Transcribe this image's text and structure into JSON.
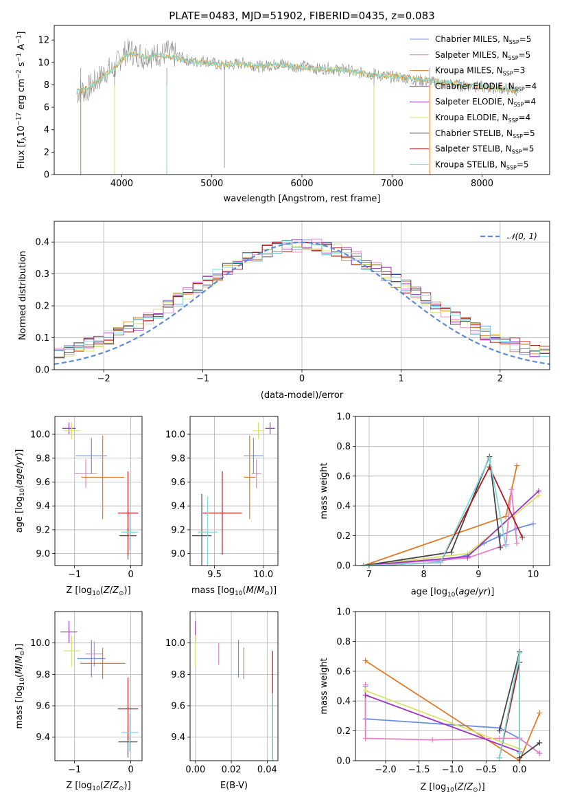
{
  "page_title": "PLATE=0483, MJD=51902, FIBERID=0435, z=0.083",
  "series_colors": {
    "chabrier_miles": "#6c8fe0",
    "salpeter_miles": "#e87fc4",
    "kroupa_miles": "#e07a2a",
    "chabrier_elodie": "#9b36c4",
    "salpeter_elodie": "#9b36c4",
    "kroupa_elodie": "#d9e36a",
    "chabrier_stelib": "#444444",
    "salpeter_stelib": "#b01919",
    "kroupa_stelib": "#7fd9dc",
    "data": "#888888"
  },
  "legend_labels": [
    "Chabrier MILES, N",
    "Salpeter MILES, N",
    "Kroupa MILES, N",
    "Chabrier ELODIE, N",
    "Salpeter ELODIE, N",
    "Kroupa ELODIE, N",
    "Chabrier STELIB, N",
    "Salpeter STELIB, N",
    "Kroupa STELIB, N"
  ],
  "legend_counts": [
    "5",
    "5",
    "3",
    "4",
    "4",
    "4",
    "5",
    "5",
    "5"
  ],
  "legend_subscript": "SSP",
  "gauss_label": "𝒩(0, 1)",
  "chart_data": [
    {
      "type": "line",
      "title": "PLATE=0483, MJD=51902, FIBERID=0435, z=0.083",
      "xlabel": "wavelength [Angstrom, rest frame]",
      "ylabel": "Flux [f_λ10^-17 erg cm^-2 s^-1 A^-1]",
      "xlim": [
        3250,
        8750
      ],
      "ylim": [
        0,
        13.3
      ],
      "xticks": [
        4000,
        5000,
        6000,
        7000,
        8000
      ],
      "yticks": [
        0,
        2,
        4,
        6,
        8,
        10,
        12
      ],
      "data_spectrum": {
        "x": [
          3500,
          3550,
          3600,
          3650,
          3700,
          3750,
          3800,
          3850,
          3900,
          3950,
          4000,
          4050,
          4100,
          4150,
          4200,
          4250,
          4300,
          4350,
          4400,
          4450,
          4500,
          4600,
          4700,
          4800,
          4900,
          5000,
          5100,
          5200,
          5300,
          5400,
          5500,
          5600,
          5700,
          5800,
          5900,
          6000,
          6100,
          6200,
          6300,
          6400,
          6500,
          6600,
          6700,
          6800,
          6900,
          7000,
          7100,
          7200,
          7300,
          7400,
          7500,
          7600,
          7700,
          7800,
          7900,
          8000,
          8100,
          8200,
          8300,
          8400
        ],
        "y": [
          7.2,
          7.6,
          7.4,
          7.9,
          8.2,
          8.6,
          9.0,
          9.4,
          9.2,
          9.9,
          10.6,
          10.9,
          11.1,
          10.6,
          10.8,
          10.4,
          10.9,
          10.5,
          10.8,
          10.7,
          10.9,
          10.6,
          10.3,
          10.0,
          10.2,
          10.0,
          9.7,
          9.8,
          9.9,
          10.0,
          9.6,
          9.7,
          9.8,
          9.9,
          9.6,
          9.7,
          9.5,
          9.4,
          9.5,
          9.3,
          9.4,
          9.0,
          9.1,
          8.9,
          8.8,
          8.7,
          8.7,
          8.5,
          8.4,
          8.3,
          8.2,
          8.1,
          8.0,
          7.9,
          7.9,
          7.8,
          7.7,
          7.7,
          7.6,
          7.5
        ]
      },
      "model_spectrum": {
        "x": [
          3500,
          3600,
          3700,
          3800,
          3900,
          4000,
          4100,
          4200,
          4300,
          4400,
          4500,
          4700,
          4900,
          5100,
          5300,
          5500,
          5700,
          5900,
          6100,
          6300,
          6500,
          6700,
          6900,
          7100,
          7300,
          7500,
          7700,
          7900,
          8100,
          8300,
          8400
        ],
        "y": [
          7.4,
          7.6,
          8.1,
          8.8,
          9.3,
          10.3,
          10.8,
          10.6,
          10.5,
          10.6,
          10.6,
          10.2,
          10.0,
          9.8,
          9.9,
          9.7,
          9.8,
          9.6,
          9.5,
          9.4,
          9.3,
          9.0,
          8.8,
          8.7,
          8.5,
          8.3,
          8.1,
          7.9,
          7.8,
          7.6,
          7.5
        ]
      }
    },
    {
      "type": "line",
      "xlabel": "(data-model)/error",
      "ylabel": "Normed distribution",
      "xlim": [
        -2.5,
        2.5
      ],
      "ylim": [
        0,
        0.465
      ],
      "xticks": [
        -2,
        -1,
        0,
        1,
        2
      ],
      "yticks": [
        0.0,
        0.1,
        0.2,
        0.3,
        0.4
      ],
      "series": [
        {
          "name": "𝒩(0, 1)",
          "type": "gaussian",
          "mu": 0,
          "sigma": 1
        }
      ],
      "histogram_note_bins": 50
    },
    {
      "type": "scatter",
      "xlabel": "Z [log10(Z/Z⊙)]",
      "ylabel": "age [log10(age/yr)]",
      "xlim": [
        -1.35,
        0.2
      ],
      "ylim": [
        8.9,
        10.15
      ],
      "xticks": [
        -1,
        0
      ],
      "yticks": [
        9.0,
        9.2,
        9.4,
        9.6,
        9.8,
        10.0
      ],
      "points": [
        {
          "s": "chabrier_miles",
          "x": -0.7,
          "y": 9.82,
          "ex": 0.28,
          "ey": 0.15
        },
        {
          "s": "salpeter_miles",
          "x": -0.8,
          "y": 9.67,
          "ex": 0.2,
          "ey": 0.12
        },
        {
          "s": "kroupa_miles",
          "x": -0.5,
          "y": 9.64,
          "ex": 0.38,
          "ey": 0.35
        },
        {
          "s": "chabrier_elodie",
          "x": -1.1,
          "y": 10.05,
          "ex": 0.12,
          "ey": 0.05
        },
        {
          "s": "kroupa_elodie",
          "x": -1.05,
          "y": 10.03,
          "ex": 0.15,
          "ey": 0.07
        },
        {
          "s": "chabrier_stelib",
          "x": -0.05,
          "y": 9.15,
          "ex": 0.15,
          "ey": 0.2
        },
        {
          "s": "salpeter_stelib",
          "x": -0.05,
          "y": 9.34,
          "ex": 0.18,
          "ey": 0.35
        },
        {
          "s": "kroupa_stelib",
          "x": -0.02,
          "y": 9.18,
          "ex": 0.15,
          "ey": 0.15
        }
      ]
    },
    {
      "type": "scatter",
      "xlabel": "mass [log10(M/M⊙)]",
      "ylabel": "",
      "xlim": [
        9.25,
        10.15
      ],
      "ylim": [
        8.9,
        10.15
      ],
      "xticks": [
        9.5,
        10.0
      ],
      "yticks": [
        9.0,
        9.2,
        9.4,
        9.6,
        9.8,
        10.0
      ],
      "points": [
        {
          "s": "chabrier_miles",
          "x": 9.9,
          "y": 9.82,
          "ex": 0.1,
          "ey": 0.15
        },
        {
          "s": "salpeter_miles",
          "x": 9.93,
          "y": 9.67,
          "ex": 0.05,
          "ey": 0.12
        },
        {
          "s": "kroupa_miles",
          "x": 9.86,
          "y": 9.64,
          "ex": 0.06,
          "ey": 0.35
        },
        {
          "s": "chabrier_elodie",
          "x": 10.07,
          "y": 10.05,
          "ex": 0.05,
          "ey": 0.05
        },
        {
          "s": "kroupa_elodie",
          "x": 9.95,
          "y": 10.03,
          "ex": 0.06,
          "ey": 0.07
        },
        {
          "s": "chabrier_stelib",
          "x": 9.37,
          "y": 9.15,
          "ex": 0.1,
          "ey": 0.35
        },
        {
          "s": "salpeter_stelib",
          "x": 9.58,
          "y": 9.34,
          "ex": 0.2,
          "ey": 0.35
        },
        {
          "s": "kroupa_stelib",
          "x": 9.43,
          "y": 9.18,
          "ex": 0.1,
          "ey": 0.3
        }
      ]
    },
    {
      "type": "line",
      "xlabel": "age [log10(age/yr)]",
      "ylabel": "mass weight",
      "xlim": [
        6.75,
        10.3
      ],
      "ylim": [
        0,
        1.0
      ],
      "xticks": [
        7,
        8,
        9,
        10
      ],
      "yticks": [
        0.0,
        0.2,
        0.4,
        0.6,
        0.8,
        1.0
      ],
      "series": [
        {
          "s": "chabrier_miles",
          "x": [
            6.9,
            7.6,
            8.3,
            8.8,
            9.1,
            9.4,
            9.7,
            10.0
          ],
          "y": [
            0.0,
            0.03,
            0.03,
            0.07,
            0.15,
            0.2,
            0.25,
            0.28
          ]
        },
        {
          "s": "kroupa_miles",
          "x": [
            6.9,
            9.5,
            9.7
          ],
          "y": [
            0.0,
            0.33,
            0.67
          ]
        },
        {
          "s": "salpeter_miles",
          "x": [
            6.9,
            8.8,
            9.5,
            9.6,
            9.7
          ],
          "y": [
            0.0,
            0.05,
            0.14,
            0.51,
            0.15
          ]
        },
        {
          "s": "kroupa_elodie",
          "x": [
            6.9,
            8.8,
            10.1
          ],
          "y": [
            0.0,
            0.08,
            0.47
          ]
        },
        {
          "s": "chabrier_elodie",
          "x": [
            6.9,
            8.8,
            10.1
          ],
          "y": [
            0.0,
            0.06,
            0.5
          ]
        },
        {
          "s": "chabrier_stelib",
          "x": [
            6.9,
            8.5,
            9.2,
            9.4
          ],
          "y": [
            0.0,
            0.09,
            0.73,
            0.12
          ]
        },
        {
          "s": "salpeter_stelib",
          "x": [
            6.9,
            8.3,
            9.2,
            9.8
          ],
          "y": [
            0.0,
            0.02,
            0.66,
            0.19
          ]
        },
        {
          "s": "kroupa_stelib",
          "x": [
            6.9,
            8.3,
            9.2,
            9.5
          ],
          "y": [
            0.0,
            0.02,
            0.72,
            0.13
          ]
        }
      ]
    },
    {
      "type": "scatter",
      "xlabel": "Z [log10(Z/Z⊙)]",
      "ylabel": "mass [log10(M/M⊙)]",
      "xlim": [
        -1.35,
        0.2
      ],
      "ylim": [
        9.25,
        10.2
      ],
      "xticks": [
        -1,
        0
      ],
      "yticks": [
        9.4,
        9.6,
        9.8,
        10.0
      ],
      "points": [
        {
          "s": "chabrier_miles",
          "x": -0.7,
          "y": 9.9,
          "ex": 0.25,
          "ey": 0.12
        },
        {
          "s": "salpeter_miles",
          "x": -0.65,
          "y": 9.93,
          "ex": 0.15,
          "ey": 0.08
        },
        {
          "s": "kroupa_miles",
          "x": -0.5,
          "y": 9.87,
          "ex": 0.4,
          "ey": 0.1
        },
        {
          "s": "chabrier_elodie",
          "x": -1.1,
          "y": 10.07,
          "ex": 0.15,
          "ey": 0.07
        },
        {
          "s": "kroupa_elodie",
          "x": -1.05,
          "y": 9.95,
          "ex": 0.15,
          "ey": 0.1
        },
        {
          "s": "chabrier_stelib",
          "x": -0.05,
          "y": 9.37,
          "ex": 0.17,
          "ey": 0.1
        },
        {
          "s": "salpeter_stelib",
          "x": -0.05,
          "y": 9.58,
          "ex": 0.18,
          "ey": 0.2
        },
        {
          "s": "kroupa_stelib",
          "x": -0.02,
          "y": 9.43,
          "ex": 0.15,
          "ey": 0.12
        }
      ]
    },
    {
      "type": "scatter",
      "xlabel": "E(B-V)",
      "ylabel": "",
      "xlim": [
        -0.003,
        0.046
      ],
      "ylim": [
        9.25,
        10.2
      ],
      "xticks": [
        0.0,
        0.02,
        0.04
      ],
      "yticks": [
        9.4,
        9.6,
        9.8,
        10.0
      ],
      "points": [
        {
          "s": "chabrier_elodie",
          "x": 0.0,
          "y": 10.07,
          "ex": 0,
          "ey": 0.07
        },
        {
          "s": "kroupa_elodie",
          "x": 0.0,
          "y": 9.95,
          "ex": 0,
          "ey": 0.1
        },
        {
          "s": "salpeter_miles",
          "x": 0.013,
          "y": 9.93,
          "ex": 0,
          "ey": 0.07
        },
        {
          "s": "chabrier_miles",
          "x": 0.024,
          "y": 9.9,
          "ex": 0,
          "ey": 0.12
        },
        {
          "s": "kroupa_miles",
          "x": 0.027,
          "y": 9.87,
          "ex": 0,
          "ey": 0.1
        },
        {
          "s": "salpeter_stelib",
          "x": 0.043,
          "y": 9.58,
          "ex": 0,
          "ey": 0.37
        },
        {
          "s": "chabrier_stelib",
          "x": 0.043,
          "y": 9.37,
          "ex": 0,
          "ey": 0.3
        },
        {
          "s": "kroupa_stelib",
          "x": 0.043,
          "y": 9.43,
          "ex": 0,
          "ey": 0.25
        }
      ]
    },
    {
      "type": "line",
      "xlabel": "Z [log10(Z/Z⊙)]",
      "ylabel": "mass weight",
      "xlim": [
        -2.45,
        0.45
      ],
      "ylim": [
        0,
        1.0
      ],
      "xticks": [
        -2.0,
        -1.5,
        -1.0,
        -0.5,
        0.0
      ],
      "yticks": [
        0.0,
        0.2,
        0.4,
        0.6,
        0.8,
        1.0
      ],
      "series": [
        {
          "s": "chabrier_miles",
          "x": [
            -2.3,
            -2.3,
            -0.3,
            0.0,
            0.3
          ],
          "y": [
            0.5,
            0.28,
            0.22,
            0.15,
            0.05
          ]
        },
        {
          "s": "kroupa_miles",
          "x": [
            -2.3,
            0.0,
            0.3
          ],
          "y": [
            0.67,
            0.0,
            0.32
          ]
        },
        {
          "s": "salpeter_miles",
          "x": [
            -2.3,
            -2.3,
            -1.3,
            -0.3,
            0.0,
            0.3
          ],
          "y": [
            0.51,
            0.15,
            0.14,
            0.15,
            0.15,
            0.05
          ]
        },
        {
          "s": "kroupa_elodie",
          "x": [
            -2.3,
            0.0
          ],
          "y": [
            0.47,
            0.08
          ]
        },
        {
          "s": "chabrier_elodie",
          "x": [
            -2.3,
            0.0
          ],
          "y": [
            0.44,
            0.06
          ]
        },
        {
          "s": "chabrier_stelib",
          "x": [
            -0.3,
            0.0,
            0.0,
            0.3
          ],
          "y": [
            0.2,
            0.73,
            0.02,
            0.12
          ]
        },
        {
          "s": "salpeter_stelib",
          "x": [
            -0.3,
            0.0
          ],
          "y": [
            0.02,
            0.66
          ]
        },
        {
          "s": "kroupa_stelib",
          "x": [
            -0.3,
            0.0,
            0.0
          ],
          "y": [
            0.02,
            0.72,
            0.05
          ]
        }
      ]
    }
  ]
}
